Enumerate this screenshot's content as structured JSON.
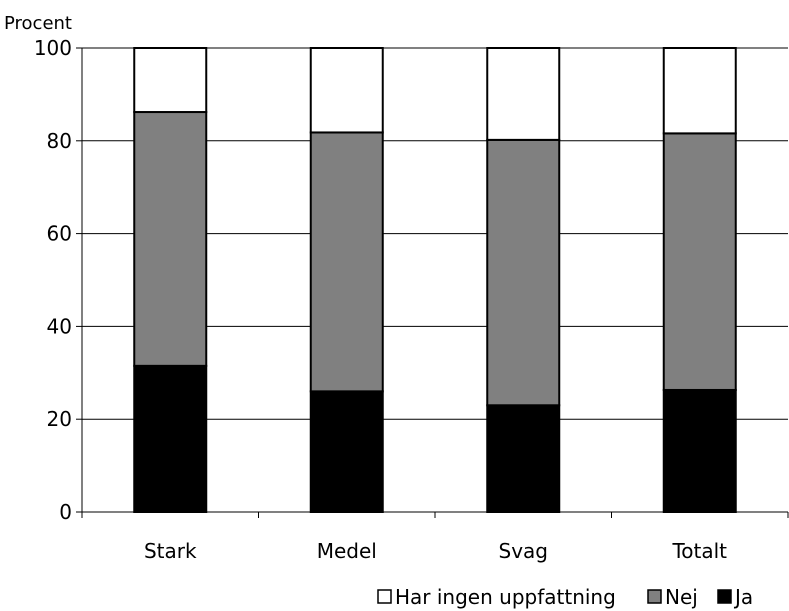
{
  "chart_data": {
    "type": "bar",
    "stacked": true,
    "ylabel": "Procent",
    "ylim": [
      0,
      100
    ],
    "yticks": [
      0,
      20,
      40,
      60,
      80,
      100
    ],
    "grid": true,
    "legend_position": "bottom-right",
    "categories": [
      "Stark",
      "Medel",
      "Svag",
      "Totalt"
    ],
    "series": [
      {
        "name": "Ja",
        "color": "#000000",
        "values": [
          31.5,
          26,
          23,
          26.3
        ]
      },
      {
        "name": "Nej",
        "color": "#808080",
        "values": [
          54.7,
          55.8,
          57.2,
          55.3
        ]
      },
      {
        "name": "Har ingen uppfattning",
        "color": "#ffffff",
        "values": [
          13.8,
          18.2,
          19.8,
          18.4
        ]
      }
    ],
    "legend_order": [
      "Har ingen uppfattning",
      "Nej",
      "Ja"
    ]
  }
}
